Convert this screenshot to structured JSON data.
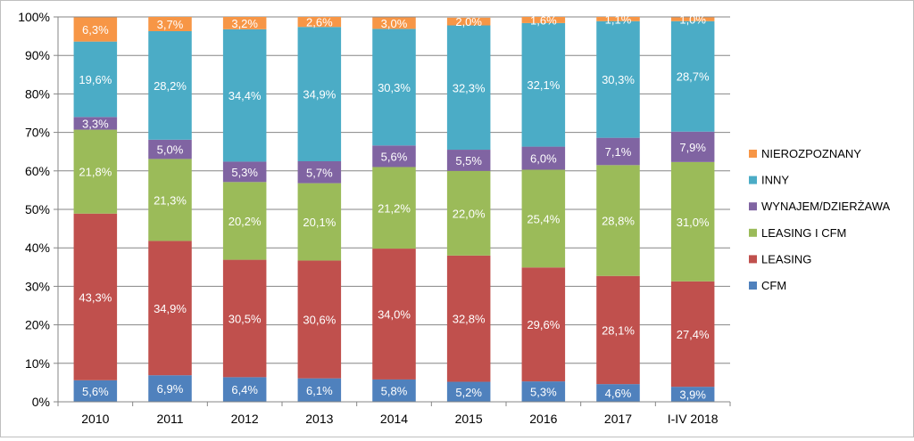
{
  "chart_data": {
    "type": "bar",
    "stacked": true,
    "percent": true,
    "categories": [
      "2010",
      "2011",
      "2012",
      "2013",
      "2014",
      "2015",
      "2016",
      "2017",
      "I-IV 2018"
    ],
    "series": [
      {
        "name": "CFM",
        "color": "#4f81bd",
        "values": [
          5.6,
          6.9,
          6.4,
          6.1,
          5.8,
          5.2,
          5.3,
          4.6,
          3.9
        ],
        "labels": [
          "5,6%",
          "6,9%",
          "6,4%",
          "6,1%",
          "5,8%",
          "5,2%",
          "5,3%",
          "4,6%",
          "3,9%"
        ]
      },
      {
        "name": "LEASING",
        "color": "#c0504d",
        "values": [
          43.3,
          34.9,
          30.5,
          30.6,
          34.0,
          32.8,
          29.6,
          28.1,
          27.4
        ],
        "labels": [
          "43,3%",
          "34,9%",
          "30,5%",
          "30,6%",
          "34,0%",
          "32,8%",
          "29,6%",
          "28,1%",
          "27,4%"
        ]
      },
      {
        "name": "LEASING I CFM",
        "color": "#9bbb59",
        "values": [
          21.8,
          21.3,
          20.2,
          20.1,
          21.2,
          22.0,
          25.4,
          28.8,
          31.0
        ],
        "labels": [
          "21,8%",
          "21,3%",
          "20,2%",
          "20,1%",
          "21,2%",
          "22,0%",
          "25,4%",
          "28,8%",
          "31,0%"
        ]
      },
      {
        "name": "WYNAJEM/DZIERŻAWA",
        "color": "#8064a2",
        "values": [
          3.3,
          5.0,
          5.3,
          5.7,
          5.6,
          5.5,
          6.0,
          7.1,
          7.9
        ],
        "labels": [
          "3,3%",
          "5,0%",
          "5,3%",
          "5,7%",
          "5,6%",
          "5,5%",
          "6,0%",
          "7,1%",
          "7,9%"
        ]
      },
      {
        "name": "INNY",
        "color": "#4bacc6",
        "values": [
          19.6,
          28.2,
          34.4,
          34.9,
          30.3,
          32.3,
          32.1,
          30.3,
          28.7
        ],
        "labels": [
          "19,6%",
          "28,2%",
          "34,4%",
          "34,9%",
          "30,3%",
          "32,3%",
          "32,1%",
          "30,3%",
          "28,7%"
        ]
      },
      {
        "name": "NIEROZPOZNANY",
        "color": "#f79646",
        "values": [
          6.3,
          3.7,
          3.2,
          2.6,
          3.0,
          2.0,
          1.6,
          1.1,
          1.0
        ],
        "labels": [
          "6,3%",
          "3,7%",
          "3,2%",
          "2,6%",
          "3,0%",
          "2,0%",
          "1,6%",
          "1,1%",
          "1,0%"
        ]
      }
    ],
    "ylim": [
      0,
      100
    ],
    "yticks": [
      "0%",
      "10%",
      "20%",
      "30%",
      "40%",
      "50%",
      "60%",
      "70%",
      "80%",
      "90%",
      "100%"
    ],
    "title": "",
    "xlabel": "",
    "ylabel": "",
    "grid": true,
    "legend_position": "right",
    "legend_order": [
      "NIEROZPOZNANY",
      "INNY",
      "WYNAJEM/DZIERŻAWA",
      "LEASING I CFM",
      "LEASING",
      "CFM"
    ]
  }
}
